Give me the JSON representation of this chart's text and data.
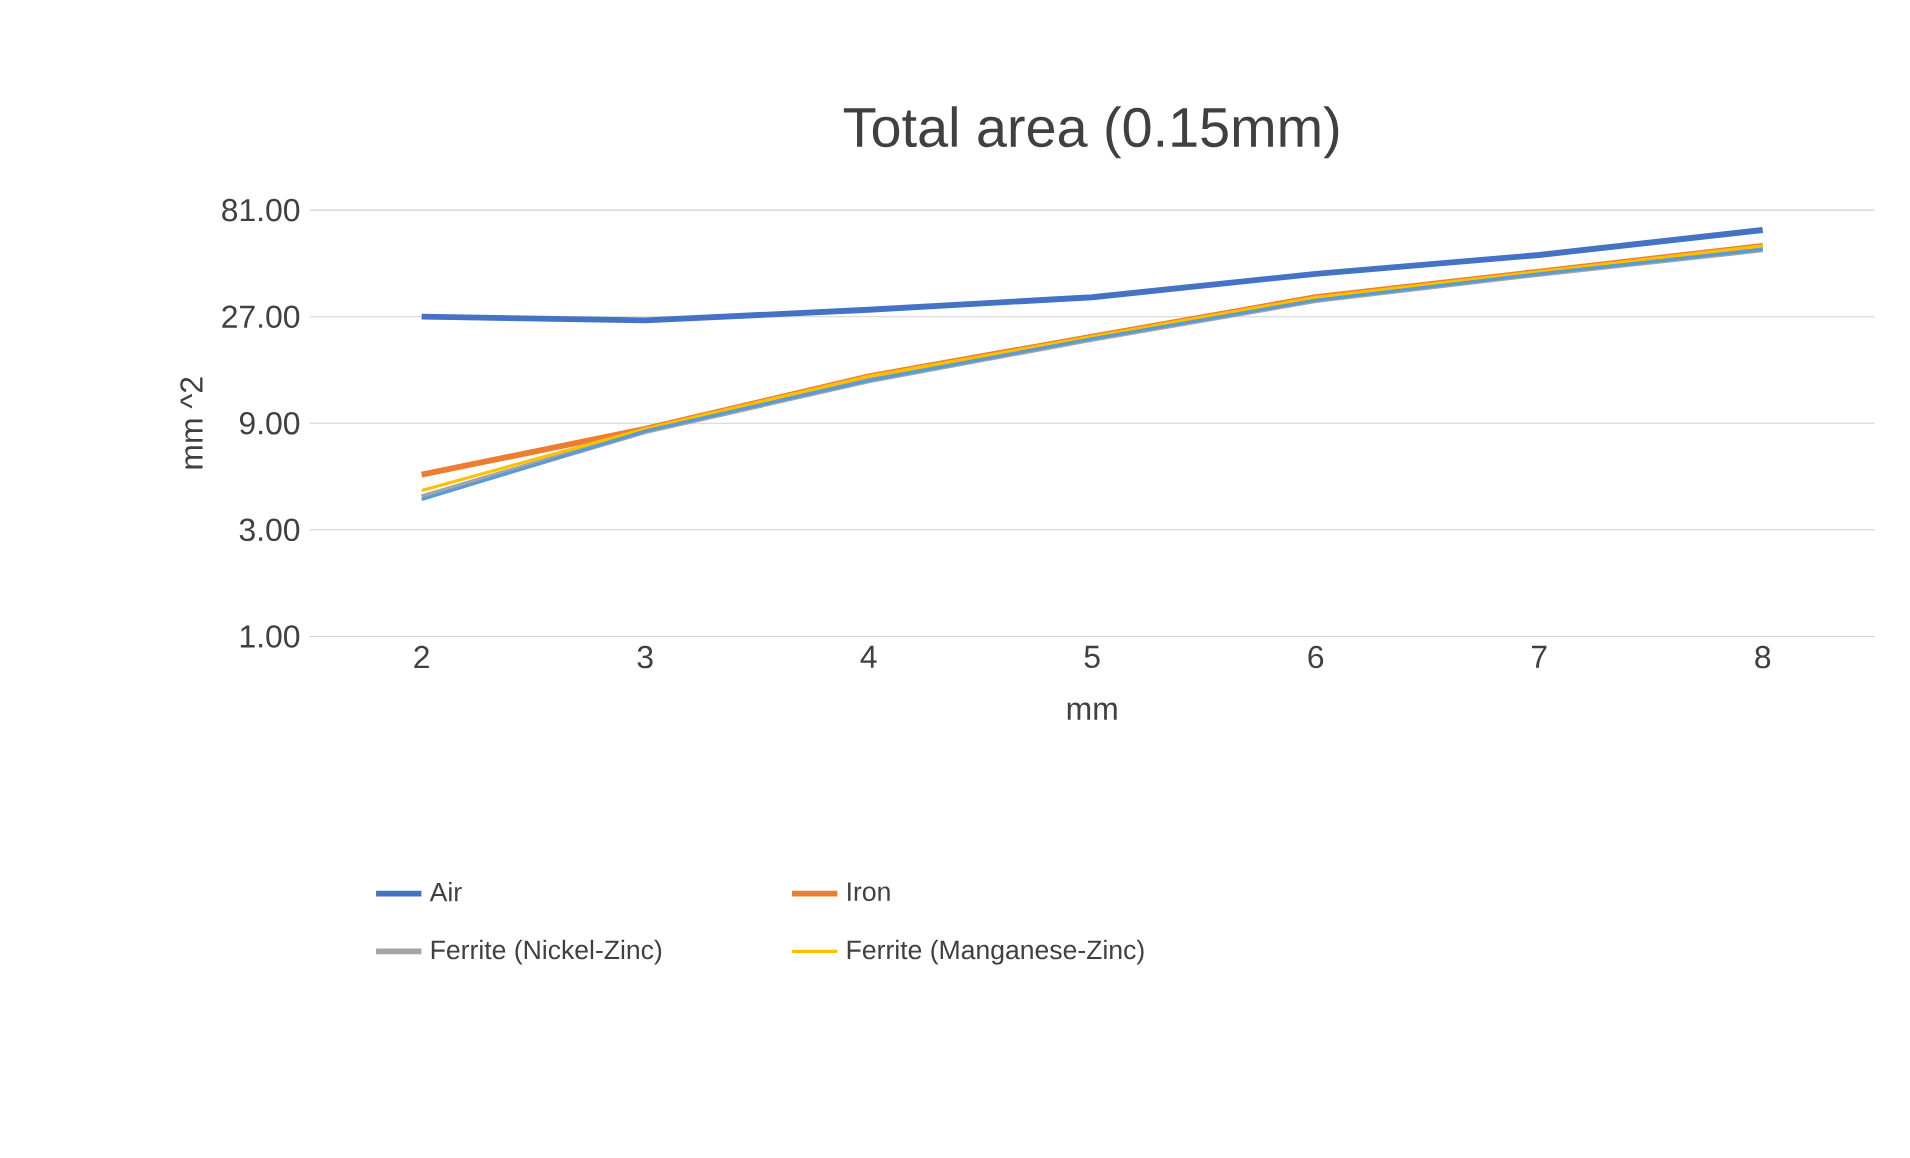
{
  "chart_data": {
    "type": "line",
    "title": "Total area (0.15mm)",
    "xlabel": "mm",
    "ylabel": "mm ^2",
    "categories": [
      "2",
      "3",
      "4",
      "5",
      "6",
      "7",
      "8"
    ],
    "log": "y",
    "ylim": [
      1,
      81
    ],
    "yticks": [
      {
        "value": 1,
        "label": "1.00"
      },
      {
        "value": 3,
        "label": "3.00"
      },
      {
        "value": 9,
        "label": "9.00"
      },
      {
        "value": 27,
        "label": "27.00"
      },
      {
        "value": 81,
        "label": "81.00"
      }
    ],
    "grid": "y",
    "legend": "bottom",
    "marker": "none",
    "line_style": "solid",
    "series": [
      {
        "name": "Air",
        "color": "#4472c4",
        "values": [
          27,
          26,
          29,
          33,
          42,
          51,
          66
        ]
      },
      {
        "name": "Iron",
        "color": "#ed7d31",
        "values": [
          5.3,
          8.5,
          14.6,
          22,
          33,
          43,
          56
        ]
      },
      {
        "name": "Ferrite (Nickel-Zinc)",
        "color": "#a5a5a5",
        "values": [
          4.2,
          8.3,
          14,
          21.5,
          32,
          42,
          54
        ]
      },
      {
        "name": "Ferrite (Manganese-Zinc)",
        "color": "#ffc000",
        "values": [
          4.5,
          8.5,
          14.6,
          22,
          33,
          43,
          56
        ]
      },
      {
        "color": "#5b9bd5",
        "values": [
          4.1,
          8.3,
          14,
          21.5,
          32,
          42,
          54
        ]
      }
    ]
  }
}
